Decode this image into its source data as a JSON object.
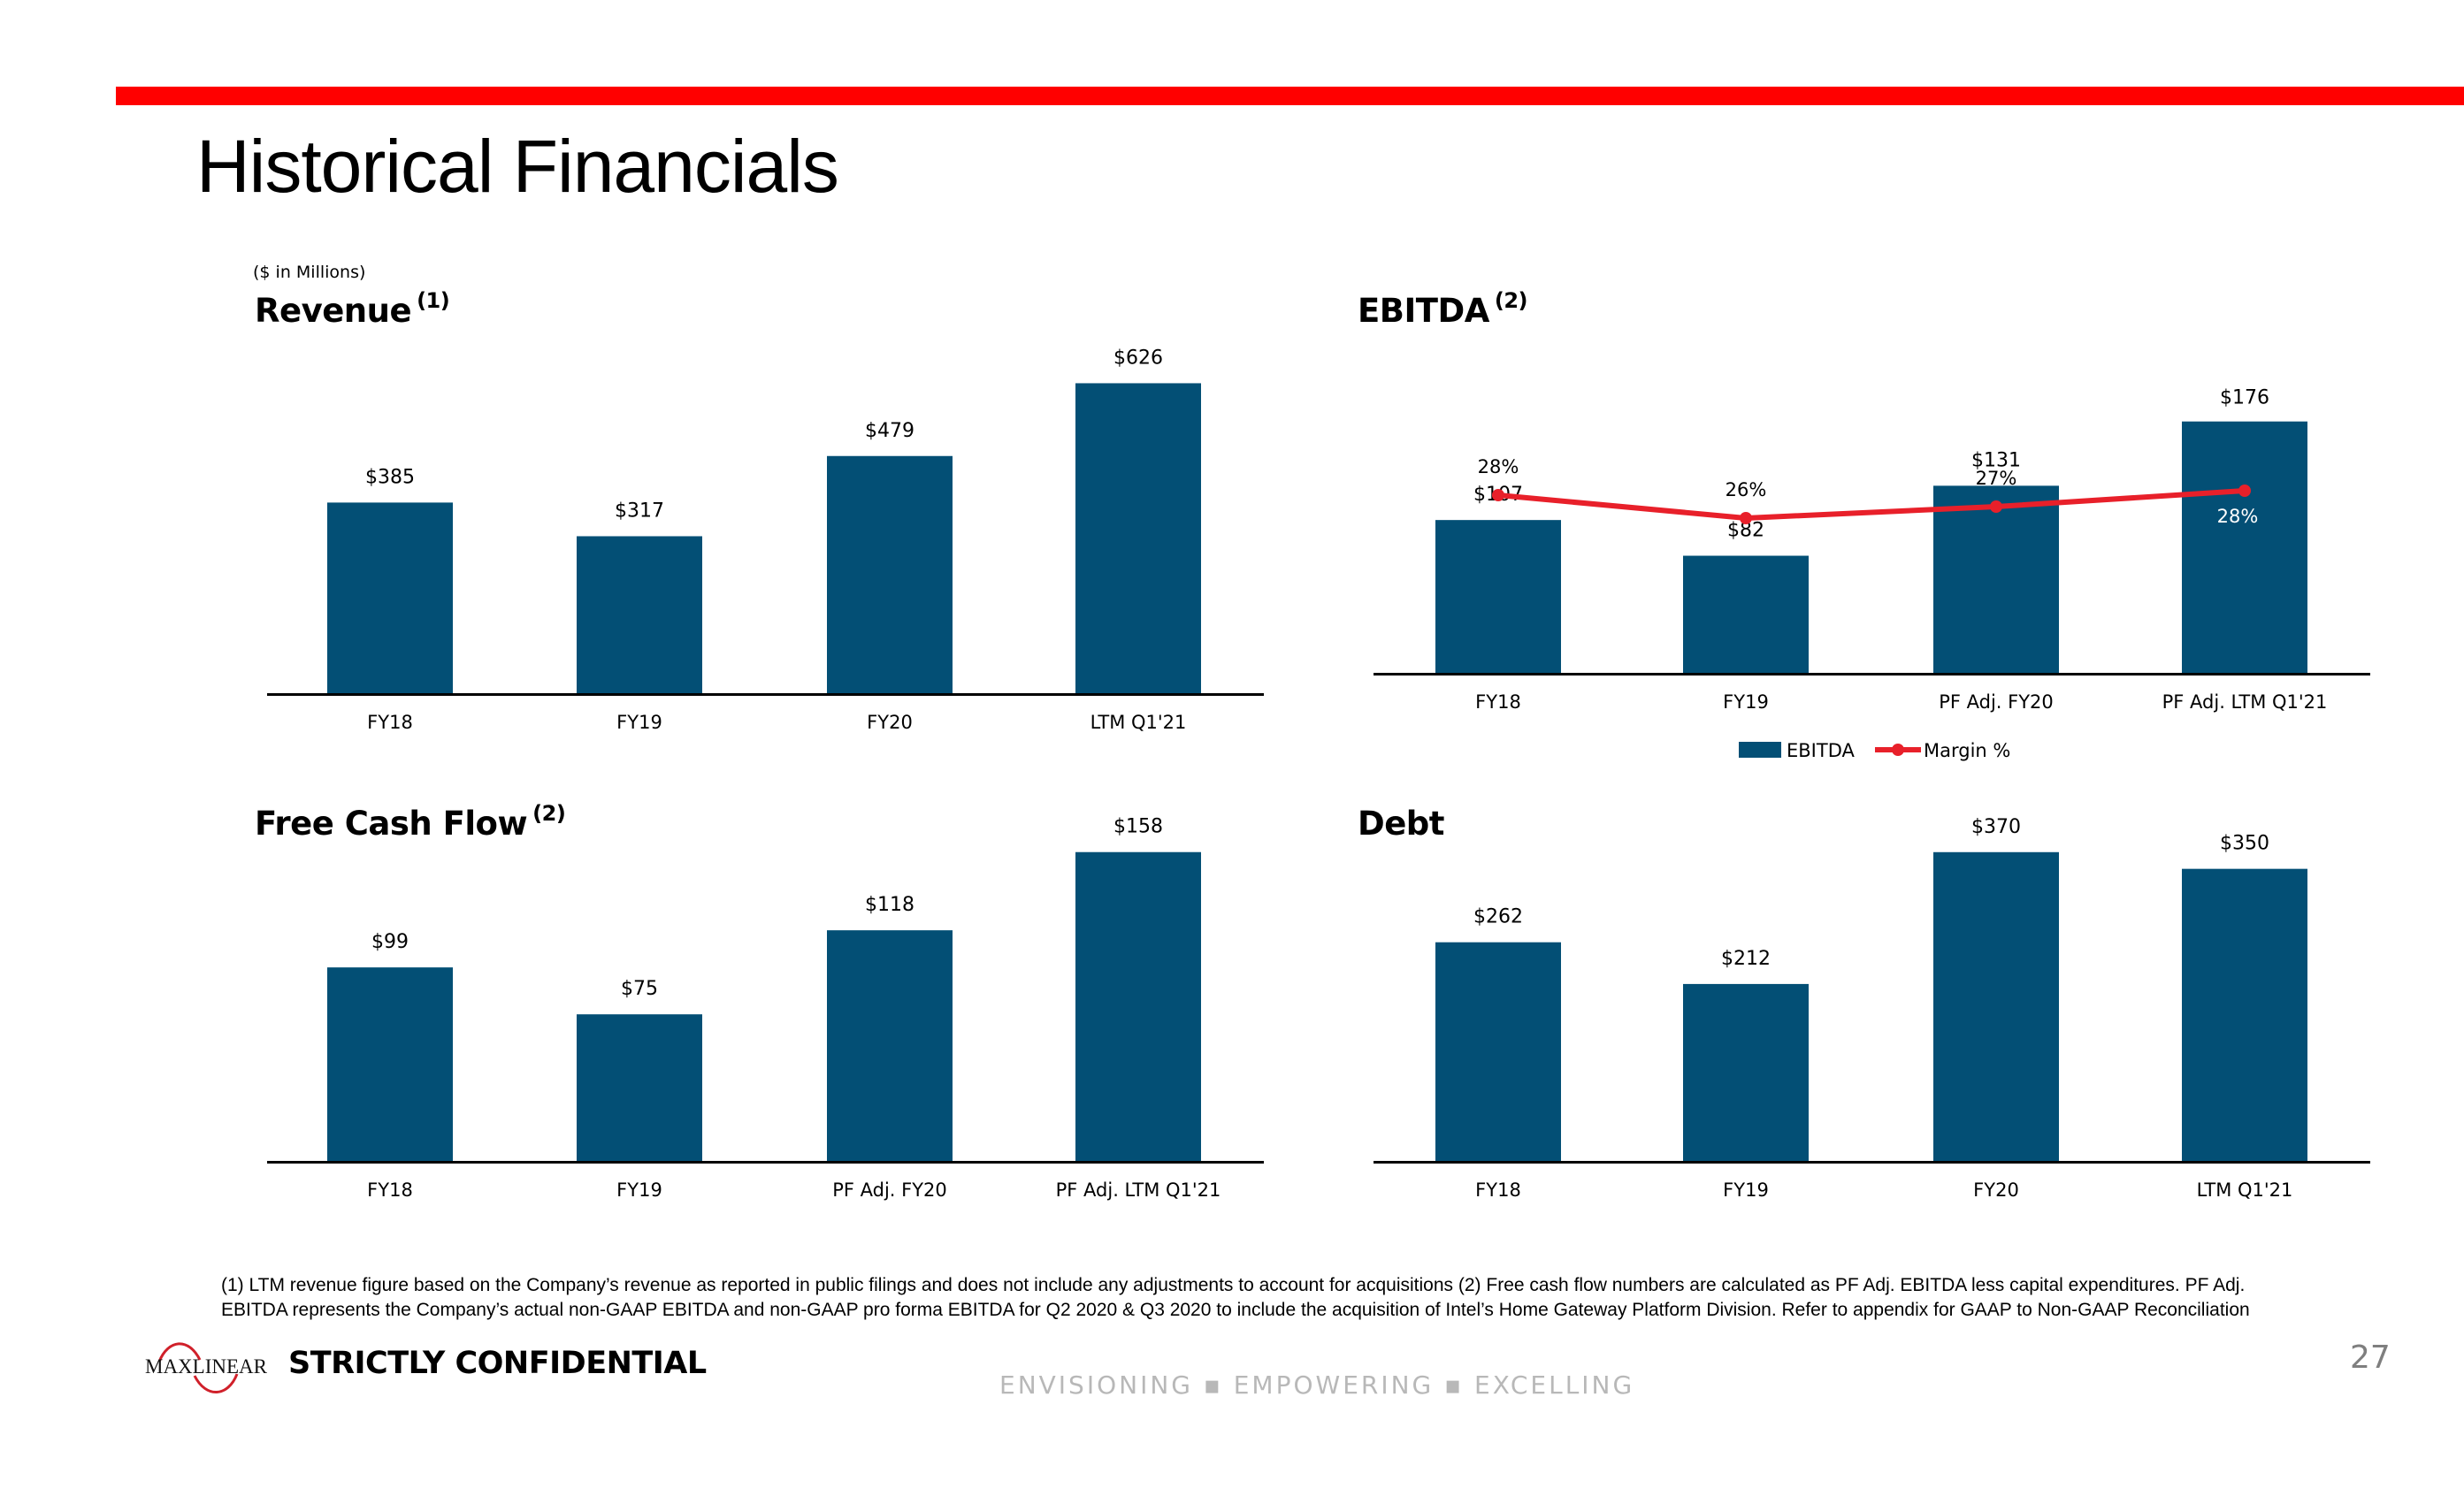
{
  "header": {
    "title": "Historical Financials",
    "units_note": "($ in Millions)"
  },
  "colors": {
    "accent_red": "#ff0000",
    "bar_blue": "#034f75",
    "line_red": "#e8202a",
    "tagline_gray": "#b8b8b8"
  },
  "sections": {
    "revenue": {
      "title": "Revenue",
      "footnote_ref": "(1)"
    },
    "ebitda": {
      "title": "EBITDA",
      "footnote_ref": "(2)"
    },
    "fcf": {
      "title": "Free Cash Flow",
      "footnote_ref": "(2)"
    },
    "debt": {
      "title": "Debt",
      "footnote_ref": ""
    }
  },
  "chart_data": [
    {
      "id": "revenue",
      "type": "bar",
      "title": "Revenue (1)",
      "categories": [
        "FY18",
        "FY19",
        "FY20",
        "LTM Q1'21"
      ],
      "values": [
        385,
        317,
        479,
        626
      ],
      "labels": [
        "$385",
        "$317",
        "$479",
        "$626"
      ],
      "xlabel": "",
      "ylabel": "$ in Millions",
      "ylim": [
        0,
        750
      ],
      "grid": false
    },
    {
      "id": "ebitda",
      "type": "bar",
      "title": "EBITDA (2)",
      "categories": [
        "FY18",
        "FY19",
        "PF Adj. FY20",
        "PF Adj. LTM Q1'21"
      ],
      "series": [
        {
          "name": "EBITDA",
          "kind": "bar",
          "values": [
            107,
            82,
            131,
            176
          ],
          "labels": [
            "$107",
            "$82",
            "$131",
            "$176"
          ]
        },
        {
          "name": "Margin %",
          "kind": "line",
          "values": [
            28,
            26,
            27,
            28
          ],
          "labels": [
            "28%",
            "26%",
            "27%",
            "28%"
          ]
        }
      ],
      "legend": [
        "EBITDA",
        "Margin %"
      ],
      "legend_position": "bottom",
      "ylim": [
        0,
        260
      ],
      "margin_ylim": [
        0,
        40
      ],
      "grid": false
    },
    {
      "id": "fcf",
      "type": "bar",
      "title": "Free Cash Flow (2)",
      "categories": [
        "FY18",
        "FY19",
        "PF Adj. FY20",
        "PF Adj. LTM Q1'21"
      ],
      "values": [
        99,
        75,
        118,
        158
      ],
      "labels": [
        "$99",
        "$75",
        "$118",
        "$158"
      ],
      "ylim": [
        0,
        190
      ],
      "grid": false
    },
    {
      "id": "debt",
      "type": "bar",
      "title": "Debt",
      "categories": [
        "FY18",
        "FY19",
        "FY20",
        "LTM Q1'21"
      ],
      "values": [
        262,
        212,
        370,
        350
      ],
      "labels": [
        "$262",
        "$212",
        "$370",
        "$350"
      ],
      "ylim": [
        0,
        445
      ],
      "grid": false
    }
  ],
  "footnote": {
    "line1": "(1) LTM revenue figure based on the Company’s revenue as reported in public filings and does not include any adjustments to account for acquisitions (2) Free cash flow numbers are calculated as PF Adj. EBITDA less capital expenditures. PF Adj.",
    "line2": "EBITDA represents the Company’s actual non-GAAP EBITDA and non-GAAP pro forma EBITDA for Q2 2020 & Q3 2020 to include the acquisition of Intel’s Home Gateway Platform Division. Refer to appendix for GAAP to Non-GAAP Reconciliation"
  },
  "footer": {
    "logo_text": "MaxLinear",
    "confidential": "STRICTLY CONFIDENTIAL",
    "tagline": "ENVISIONING ▪ EMPOWERING ▪ EXCELLING",
    "page_number": "27"
  }
}
